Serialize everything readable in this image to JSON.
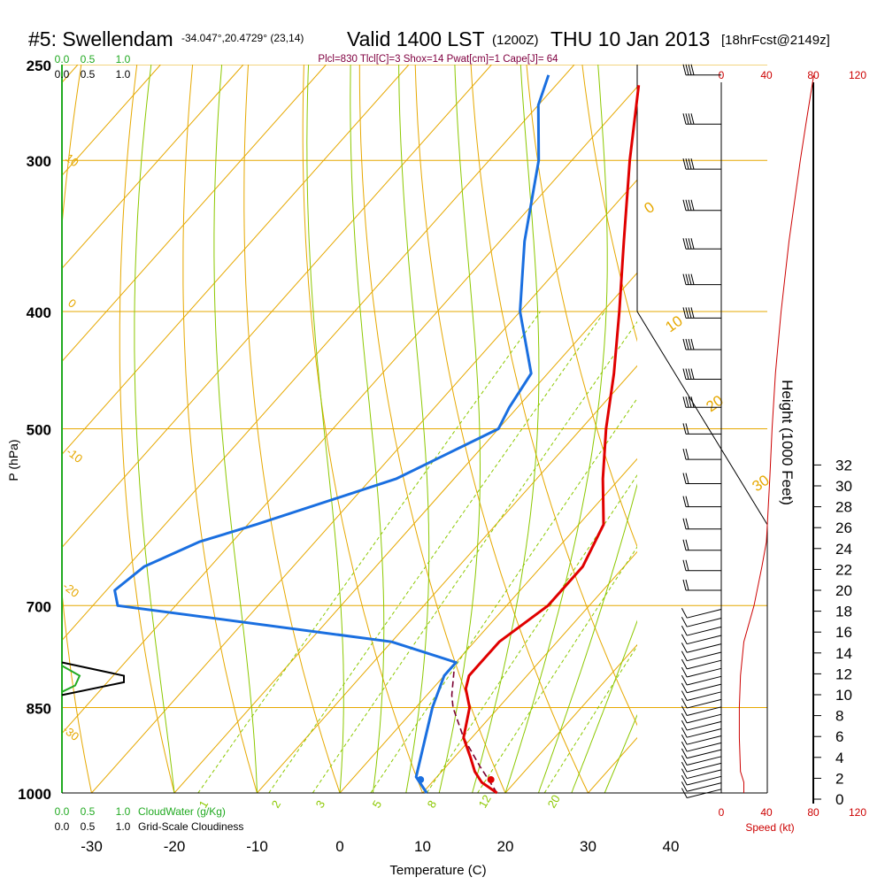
{
  "header": {
    "station": "#5: Swellendam",
    "coords": "-34.047°,20.4729° (23,14)",
    "valid": "Valid 1400 LST",
    "valid_z": "(1200Z)",
    "date": "THU 10 Jan 2013",
    "forecast": "[18hrFcst@2149z]",
    "indices": "Plcl=830 Tlcl[C]=3 Shox=14 Pwat[cm]=1 Cape[J]= 64"
  },
  "colors": {
    "isotherm": "#e6a800",
    "dry_adiabat": "#e6a800",
    "moist_adiabat": "#8cc800",
    "mixing_ratio": "#8cc800",
    "temperature": "#e00000",
    "dewpoint": "#1a6fe0",
    "parcel": "#7a0030",
    "cloud_water": "#22aa22",
    "speed": "#cc0000"
  },
  "chart_data": {
    "type": "line",
    "title": "#5: Swellendam",
    "xlabel": "Temperature (C)",
    "ylabel": "P (hPa)",
    "y_right_label": "Height (1000 Feet)",
    "speed_label": "Speed (kt)",
    "x_ticks": [
      "-30",
      "-20",
      "-10",
      "0",
      "10",
      "20",
      "30",
      "40"
    ],
    "x_tick_values": [
      -30,
      -20,
      -10,
      0,
      10,
      20,
      30,
      40
    ],
    "p_ticks": [
      "250",
      "300",
      "400",
      "500",
      "700",
      "850",
      "1000"
    ],
    "p_tick_values": [
      250,
      300,
      400,
      500,
      700,
      850,
      1000
    ],
    "height_ticks": [
      "0",
      "2",
      "4",
      "6",
      "8",
      "10",
      "12",
      "14",
      "16",
      "18",
      "20",
      "22",
      "24",
      "26",
      "28",
      "30",
      "32"
    ],
    "speed_ticks": [
      "0",
      "40",
      "80",
      "120"
    ],
    "cloud_water_ticks": [
      "0.0",
      "0.5",
      "1.0"
    ],
    "cloudiness_ticks": [
      "0.0",
      "0.5",
      "1.0"
    ],
    "cloud_water_label": "CloudWater (g/Kg)",
    "cloudiness_label": "Grid-Scale Cloudiness",
    "isotherm_labels": [
      "0",
      "10",
      "20",
      "30"
    ],
    "dry_adiabat_labels": [
      "10",
      "0",
      "-10",
      "-20",
      "-30"
    ],
    "mixing_ratio_labels": [
      "1",
      "2",
      "3",
      "5",
      "8",
      "12",
      "20"
    ],
    "xlim": [
      -33,
      47
    ],
    "plim": [
      1000,
      250
    ],
    "series": [
      {
        "name": "Temperature",
        "points": [
          {
            "p": 1000,
            "t": 19
          },
          {
            "p": 980,
            "t": 16
          },
          {
            "p": 960,
            "t": 14
          },
          {
            "p": 935,
            "t": 12
          },
          {
            "p": 900,
            "t": 9
          },
          {
            "p": 850,
            "t": 6.5
          },
          {
            "p": 820,
            "t": 4
          },
          {
            "p": 800,
            "t": 3
          },
          {
            "p": 780,
            "t": 3
          },
          {
            "p": 750,
            "t": 3
          },
          {
            "p": 725,
            "t": 4
          },
          {
            "p": 700,
            "t": 5
          },
          {
            "p": 650,
            "t": 5
          },
          {
            "p": 600,
            "t": 3
          },
          {
            "p": 550,
            "t": -2
          },
          {
            "p": 500,
            "t": -7
          },
          {
            "p": 450,
            "t": -12
          },
          {
            "p": 400,
            "t": -18
          },
          {
            "p": 350,
            "t": -25
          },
          {
            "p": 300,
            "t": -33
          },
          {
            "p": 260,
            "t": -40
          }
        ]
      },
      {
        "name": "Dewpoint",
        "points": [
          {
            "p": 1000,
            "t": 10.5
          },
          {
            "p": 970,
            "t": 7.5
          },
          {
            "p": 850,
            "t": 2
          },
          {
            "p": 800,
            "t": 0
          },
          {
            "p": 780,
            "t": 0
          },
          {
            "p": 750,
            "t": -10
          },
          {
            "p": 700,
            "t": -47
          },
          {
            "p": 680,
            "t": -49
          },
          {
            "p": 650,
            "t": -48
          },
          {
            "p": 620,
            "t": -44
          },
          {
            "p": 600,
            "t": -39
          },
          {
            "p": 550,
            "t": -27
          },
          {
            "p": 500,
            "t": -20
          },
          {
            "p": 480,
            "t": -21
          },
          {
            "p": 450,
            "t": -22
          },
          {
            "p": 400,
            "t": -30
          },
          {
            "p": 350,
            "t": -37
          },
          {
            "p": 300,
            "t": -44
          },
          {
            "p": 270,
            "t": -50
          },
          {
            "p": 255,
            "t": -52
          }
        ]
      },
      {
        "name": "Parcel",
        "points": [
          {
            "p": 1000,
            "t": 19
          },
          {
            "p": 950,
            "t": 14
          },
          {
            "p": 900,
            "t": 9
          },
          {
            "p": 850,
            "t": 4.5
          },
          {
            "p": 830,
            "t": 3
          },
          {
            "p": 790,
            "t": 0.5
          }
        ]
      }
    ],
    "surface": {
      "t": 19,
      "td": 10.5
    },
    "wind_speed_kt": [
      {
        "p": 1000,
        "v": 20
      },
      {
        "p": 980,
        "v": 20
      },
      {
        "p": 960,
        "v": 17
      },
      {
        "p": 900,
        "v": 16
      },
      {
        "p": 850,
        "v": 16
      },
      {
        "p": 800,
        "v": 17
      },
      {
        "p": 750,
        "v": 20
      },
      {
        "p": 700,
        "v": 29
      },
      {
        "p": 650,
        "v": 36
      },
      {
        "p": 620,
        "v": 40
      },
      {
        "p": 550,
        "v": 43
      },
      {
        "p": 500,
        "v": 45
      },
      {
        "p": 450,
        "v": 48
      },
      {
        "p": 400,
        "v": 53
      },
      {
        "p": 350,
        "v": 60
      },
      {
        "p": 300,
        "v": 70
      },
      {
        "p": 280,
        "v": 75
      },
      {
        "p": 255,
        "v": 82
      }
    ]
  }
}
